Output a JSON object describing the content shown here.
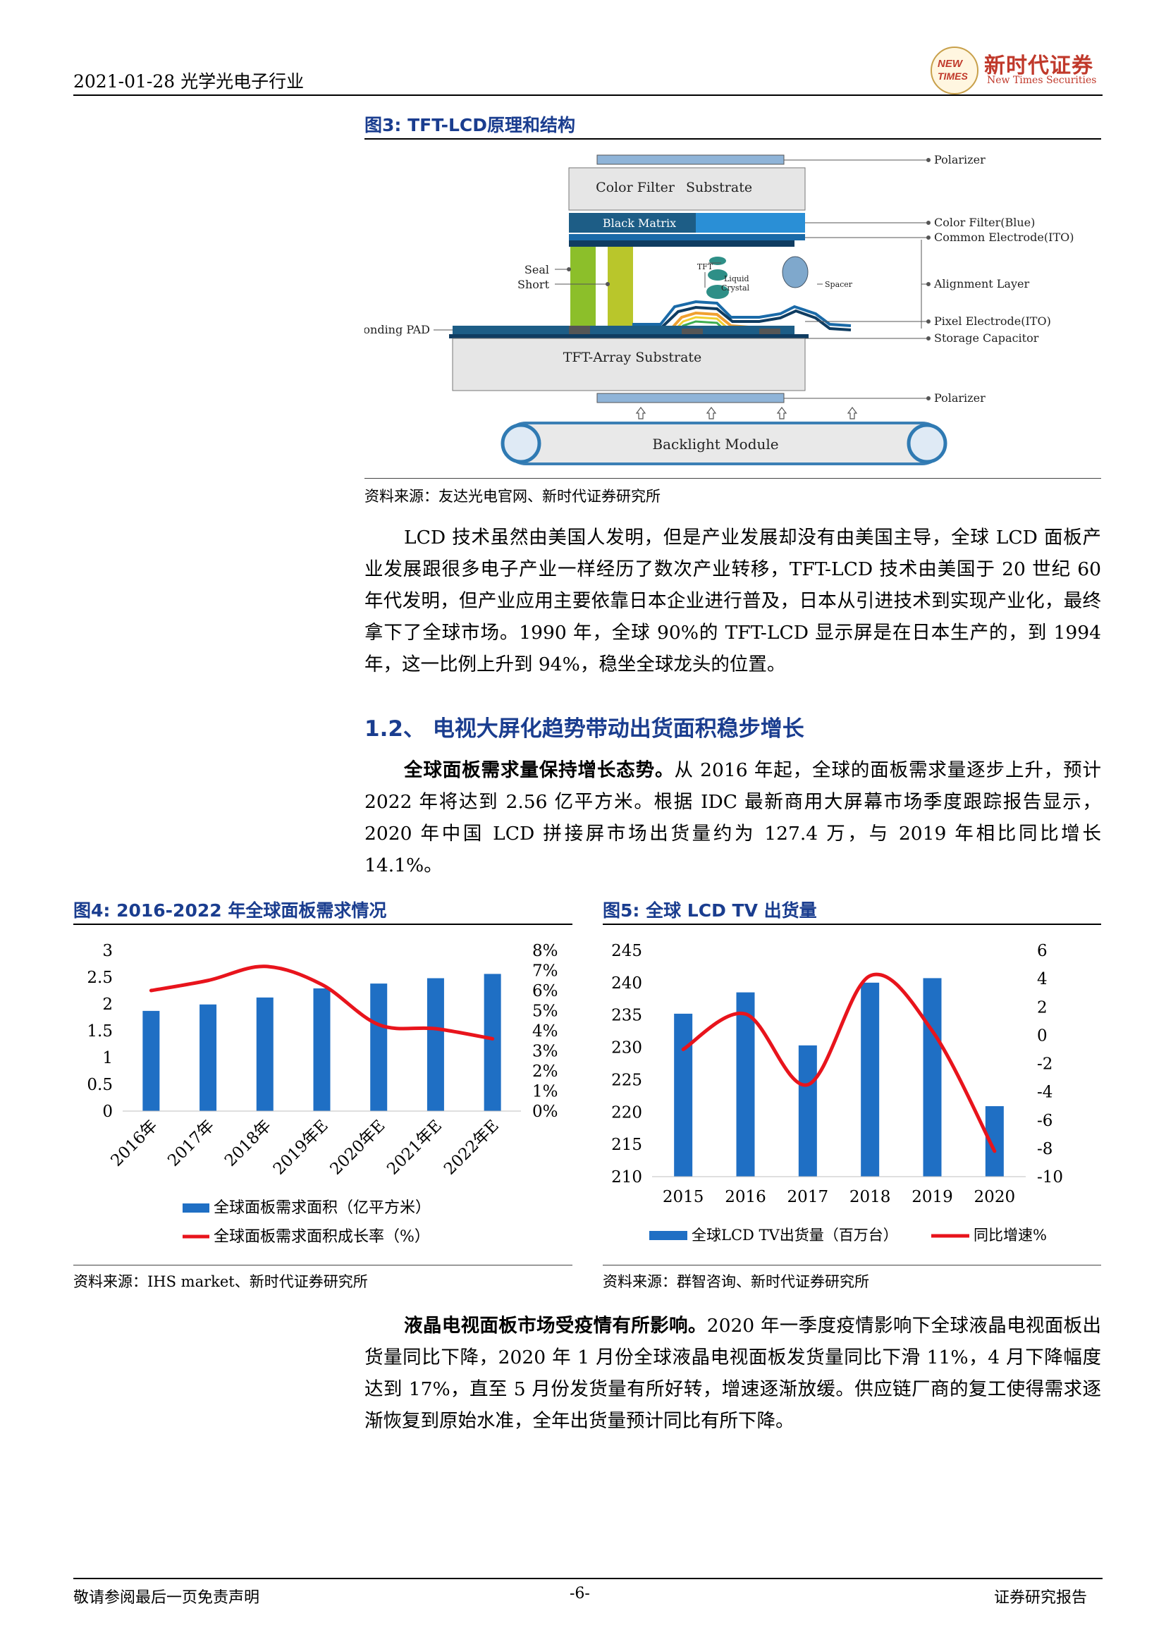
{
  "header": {
    "date_industry": "2021-01-28 光学光电子行业",
    "logo_mark_top": "NEW",
    "logo_mark_bottom": "TIMES",
    "logo_cn": "新时代证券",
    "logo_en": "New Times Securities"
  },
  "figure3": {
    "title": "图3:   TFT-LCD原理和结构",
    "source": "资料来源：友达光电官网、新时代证券研究所",
    "labels": {
      "color_filter": "Color Filter",
      "substrate": "Substrate",
      "black_matrix": "Black Matrix",
      "seal": "Seal",
      "short": "Short",
      "tft": "TFT",
      "liquid_crystal_1": "Liquid",
      "liquid_crystal_2": "Crystal",
      "spacer": "Spacer",
      "bonding_pad": "Bonding PAD",
      "tft_array": "TFT-Array Substrate",
      "backlight": "Backlight Module",
      "polarizer_top": "Polarizer",
      "color_filter_blue": "Color Filter(Blue)",
      "common_electrode": "Common Electrode(ITO)",
      "alignment_layer": "Alignment Layer",
      "pixel_electrode": "Pixel Electrode(ITO)",
      "storage_capacitor": "Storage Capacitor",
      "polarizer_bottom": "Polarizer"
    }
  },
  "para1": "LCD 技术虽然由美国人发明，但是产业发展却没有由美国主导，全球 LCD 面板产业发展跟很多电子产业一样经历了数次产业转移，TFT-LCD 技术由美国于 20 世纪 60 年代发明，但产业应用主要依靠日本企业进行普及，日本从引进技术到实现产业化，最终拿下了全球市场。1990 年，全球 90%的 TFT-LCD 显示屏是在日本生产的，到 1994 年，这一比例上升到 94%，稳坐全球龙头的位置。",
  "section_1_2": "1.2、  电视大屏化趋势带动出货面积稳步增长",
  "para2_lead": "全球面板需求量保持增长态势。",
  "para2_body": "从 2016 年起，全球的面板需求量逐步上升，预计 2022 年将达到 2.56 亿平方米。根据 IDC 最新商用大屏幕市场季度跟踪报告显示，2020 年中国 LCD 拼接屏市场出货量约为 127.4 万，与 2019 年相比同比增长 14.1%。",
  "figure4": {
    "title": "图4:   2016-2022 年全球面板需求情况",
    "source": "资料来源：IHS market、新时代证券研究所"
  },
  "figure5": {
    "title": "图5:   全球 LCD TV 出货量",
    "source": "资料来源：群智咨询、新时代证券研究所"
  },
  "para3_lead": "液晶电视面板市场受疫情有所影响。",
  "para3_body": "2020 年一季度疫情影响下全球液晶电视面板出货量同比下降，2020 年 1 月份全球液晶电视面板发货量同比下滑 11%，4 月下降幅度达到 17%，直至 5 月份发货量有所好转，增速逐渐放缓。供应链厂商的复工使得需求逐渐恢复到原始水准，全年出货量预计同比有所下降。",
  "footer": {
    "left": "敬请参阅最后一页免责声明",
    "page": "-6-",
    "right": "证券研究报告"
  },
  "chart_data": [
    {
      "type": "bar",
      "categories": [
        "2016年",
        "2017年",
        "2018年",
        "2019年E",
        "2020年E",
        "2021年E",
        "2022年E"
      ],
      "series": [
        {
          "name": "全球面板需求面积（亿平方米）",
          "type": "bar",
          "axis": "left",
          "color": "#1f6fc4",
          "values": [
            1.87,
            1.99,
            2.12,
            2.29,
            2.38,
            2.48,
            2.56
          ]
        },
        {
          "name": "全球面板需求面积成长率（%）",
          "type": "line",
          "axis": "right",
          "color": "#e8141c",
          "values": [
            6.0,
            6.5,
            7.2,
            6.3,
            4.3,
            4.1,
            3.6
          ]
        }
      ],
      "y_left": {
        "min": 0,
        "max": 3,
        "ticks": [
          "0",
          "0.5",
          "1",
          "1.5",
          "2",
          "2.5",
          "3"
        ]
      },
      "y_right": {
        "min": 0,
        "max": 8,
        "ticks": [
          "0%",
          "1%",
          "2%",
          "3%",
          "4%",
          "5%",
          "6%",
          "7%",
          "8%"
        ]
      },
      "legend_position": "bottom",
      "grid": false
    },
    {
      "type": "bar",
      "categories": [
        "2015",
        "2016",
        "2017",
        "2018",
        "2019",
        "2020"
      ],
      "series": [
        {
          "name": "全球LCD TV出货量（百万台）",
          "type": "bar",
          "axis": "left",
          "color": "#1f6fc4",
          "values": [
            235.2,
            238.5,
            230.3,
            240.0,
            240.7,
            220.9
          ]
        },
        {
          "name": "同比增速%",
          "type": "line",
          "axis": "right",
          "color": "#e8141c",
          "values": [
            -1.0,
            1.5,
            -3.5,
            4.2,
            0.3,
            -8.2
          ]
        }
      ],
      "y_left": {
        "min": 210,
        "max": 245,
        "ticks": [
          "210",
          "215",
          "220",
          "225",
          "230",
          "235",
          "240",
          "245"
        ]
      },
      "y_right": {
        "min": -10,
        "max": 6,
        "ticks": [
          "-10",
          "-8",
          "-6",
          "-4",
          "-2",
          "0",
          "2",
          "4",
          "6"
        ]
      },
      "legend_position": "bottom",
      "grid": false
    }
  ]
}
